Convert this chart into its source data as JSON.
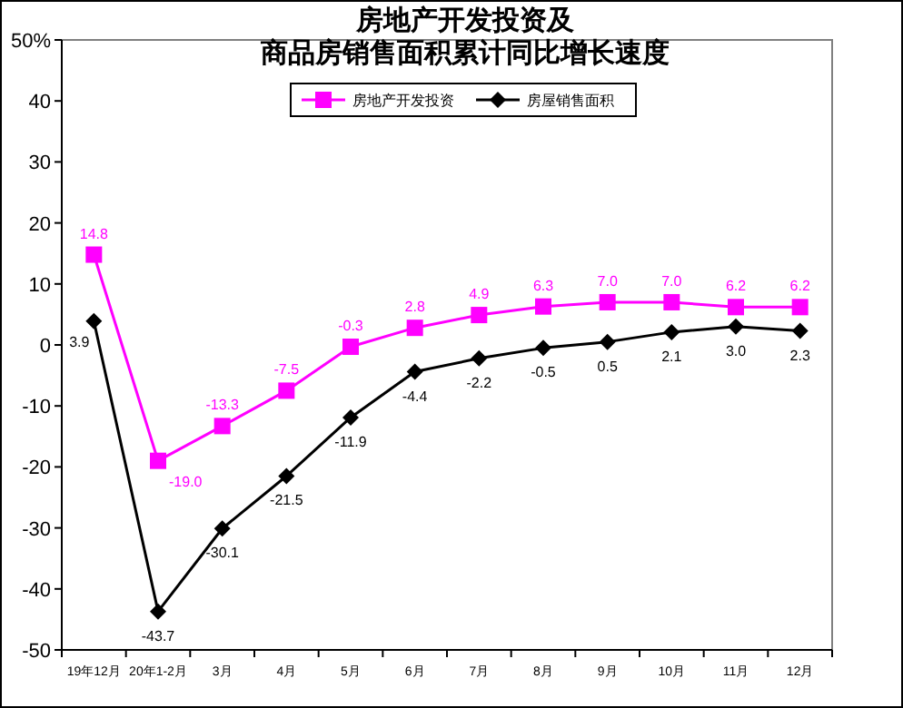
{
  "chart_data": {
    "type": "line",
    "title": "房地产开发投资及",
    "subtitle": "商品房销售面积累计同比增长速度",
    "categories": [
      "19年12月",
      "20年1-2月",
      "3月",
      "4月",
      "5月",
      "6月",
      "7月",
      "8月",
      "9月",
      "10月",
      "11月",
      "12月"
    ],
    "series": [
      {
        "name": "房地产开发投资",
        "color": "#ff00ff",
        "marker": "square",
        "values": [
          14.8,
          -19.0,
          -13.3,
          -7.5,
          -0.3,
          2.8,
          4.9,
          6.3,
          7.0,
          7.0,
          6.2,
          6.2
        ],
        "value_labels": [
          "14.8",
          "-19.0",
          "-13.3",
          "-7.5",
          "-0.3",
          "2.8",
          "4.9",
          "6.3",
          "7.0",
          "7.0",
          "6.2",
          "6.2"
        ]
      },
      {
        "name": "房屋销售面积",
        "color": "#000000",
        "marker": "diamond",
        "values": [
          3.9,
          -43.7,
          -30.1,
          -21.5,
          -11.9,
          -4.4,
          -2.2,
          -0.5,
          0.5,
          2.1,
          3.0,
          2.3
        ],
        "value_labels": [
          "3.9",
          "-43.7",
          "-30.1",
          "-21.5",
          "-11.9",
          "-4.4",
          "-2.2",
          "-0.5",
          "0.5",
          "2.1",
          "3.0",
          "2.3"
        ]
      }
    ],
    "ylim": [
      -50,
      50
    ],
    "yticks": [
      {
        "value": 50,
        "label": "50%"
      },
      40,
      30,
      20,
      10,
      0,
      -10,
      -20,
      -30,
      -40,
      -50
    ],
    "legend": "top",
    "grid": false
  }
}
